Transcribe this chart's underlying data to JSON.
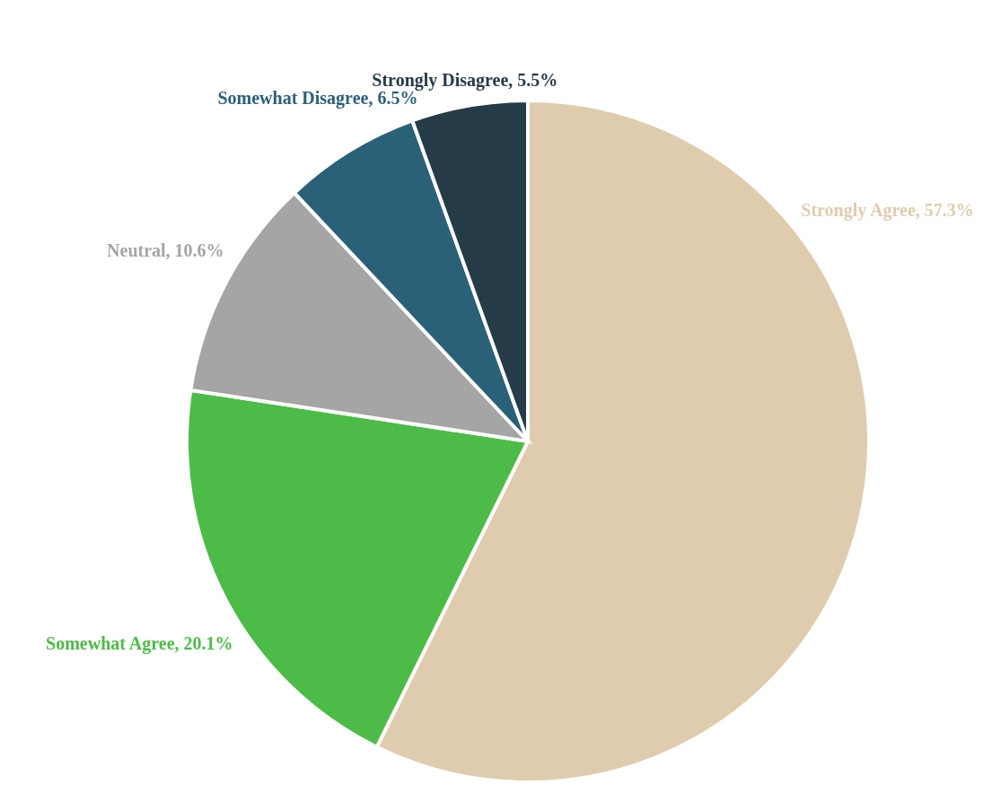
{
  "chart_data": {
    "type": "pie",
    "categories": [
      "Strongly Agree",
      "Somewhat Agree",
      "Neutral",
      "Somewhat Disagree",
      "Strongly Disagree"
    ],
    "values": [
      57.3,
      20.1,
      10.6,
      6.5,
      5.5
    ],
    "value_labels": [
      "57.3%",
      "20.1%",
      "10.6%",
      "6.5%",
      "5.5%"
    ],
    "colors": [
      "#dfccae",
      "#4dbb48",
      "#a5a5a5",
      "#2b6079",
      "#253b48"
    ]
  }
}
